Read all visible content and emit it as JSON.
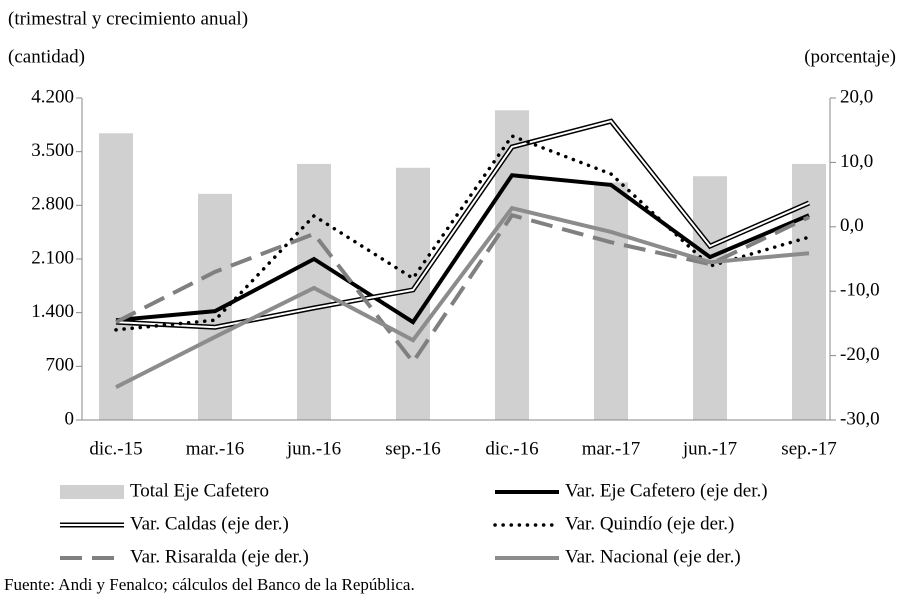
{
  "chart_data": {
    "type": "bar-line",
    "title": "(trimestral y crecimiento anual)",
    "y_label": "(cantidad)",
    "y2_label": "(porcentaje)",
    "note": "Fuente: Andi y Fenalco; cálculos del Banco de la República.",
    "categories": [
      "dic.-15",
      "mar.-16",
      "jun.-16",
      "sep.-16",
      "dic.-16",
      "mar.-17",
      "jun.-17",
      "sep.-17"
    ],
    "series": [
      {
        "name": "Total Eje Cafetero",
        "type": "bar",
        "color": "#d0d0d0",
        "axis": "y",
        "values": [
          3740,
          2950,
          3340,
          3290,
          4040,
          3100,
          3180,
          3340
        ]
      },
      {
        "name": "Var. Eje Cafetero (eje der.)",
        "type": "line",
        "style": "solid",
        "color": "#000000",
        "axis": "y2",
        "values": [
          -14.5,
          -13.1,
          -5.0,
          -14.8,
          8.0,
          6.5,
          -4.7,
          1.8
        ]
      },
      {
        "name": "Var. Caldas (eje der.)",
        "type": "line",
        "style": "double",
        "color": "#000000",
        "axis": "y2",
        "values": [
          -14.8,
          -15.6,
          -12.6,
          -9.8,
          12.4,
          16.4,
          -3.0,
          3.7
        ]
      },
      {
        "name": "Var. Quindío (eje der.)",
        "type": "line",
        "style": "dotted",
        "color": "#000000",
        "axis": "y2",
        "values": [
          -16.0,
          -14.5,
          1.7,
          -8.0,
          14.1,
          8.2,
          -6.1,
          -1.6
        ]
      },
      {
        "name": "Var. Risaralda (eje der.)",
        "type": "line",
        "style": "dashed",
        "color": "#808080",
        "axis": "y2",
        "values": [
          -14.8,
          -7.0,
          -1.1,
          -21.0,
          1.8,
          -2.4,
          -5.8,
          1.5
        ]
      },
      {
        "name": "Var. Nacional (eje der.)",
        "type": "line",
        "style": "solid",
        "color": "#8c8c8c",
        "axis": "y2",
        "values": [
          -24.9,
          -17.1,
          -9.5,
          -17.6,
          2.9,
          -0.8,
          -5.5,
          -4.1
        ]
      }
    ],
    "ylim": [
      0,
      4200
    ],
    "yticks": [
      0,
      700,
      {
        "value": 1400,
        "label": "1.400"
      },
      {
        "value": 2100,
        "label": "2.100"
      },
      {
        "value": 2800,
        "label": "2.800"
      },
      {
        "value": 3500,
        "label": "3.500"
      },
      {
        "value": 4200,
        "label": "4.200"
      }
    ],
    "y2lim": [
      -30,
      20
    ],
    "y2ticks": [
      {
        "value": -30,
        "label": "-30,0"
      },
      {
        "value": -20,
        "label": "-20,0"
      },
      {
        "value": -10,
        "label": "-10,0"
      },
      {
        "value": 0,
        "label": "0,0"
      },
      {
        "value": 10,
        "label": "10,0"
      },
      {
        "value": 20,
        "label": "20,0"
      }
    ]
  }
}
